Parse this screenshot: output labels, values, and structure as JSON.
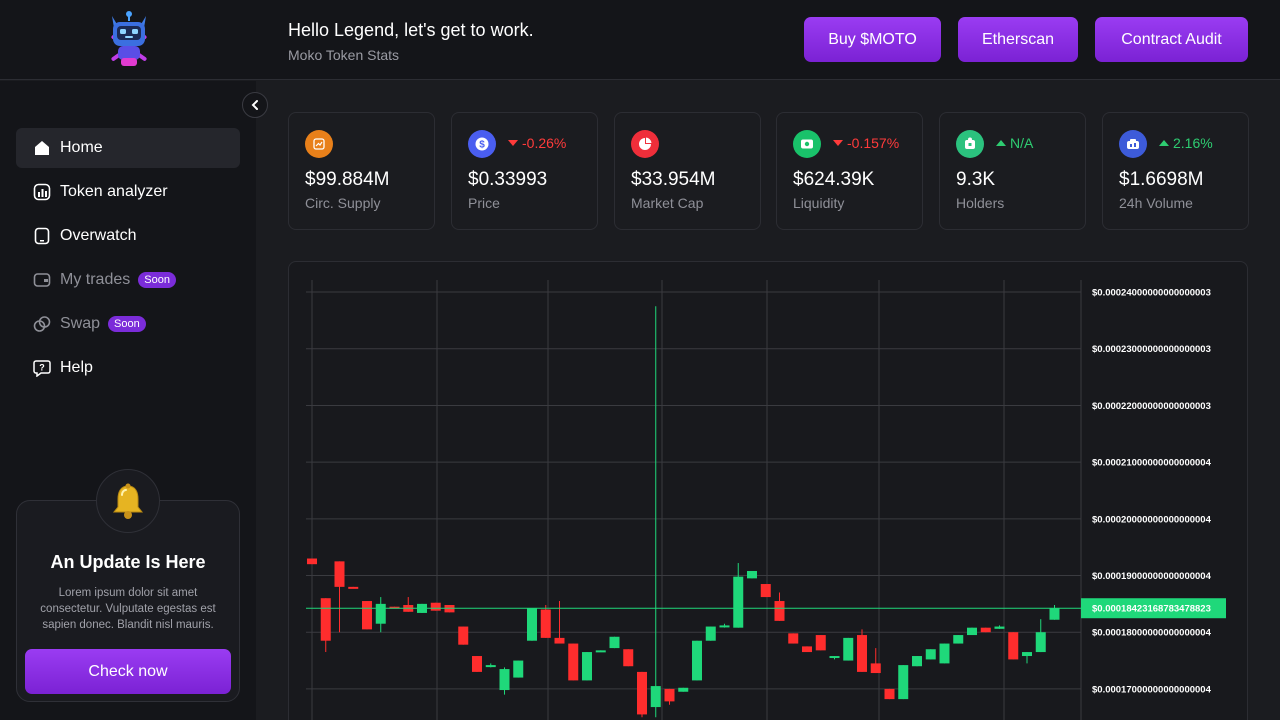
{
  "header": {
    "greeting": "Hello Legend, let's get to work.",
    "subtitle": "Moko Token Stats",
    "buttons": [
      {
        "label": "Buy $MOTO"
      },
      {
        "label": "Etherscan"
      },
      {
        "label": "Contract Audit"
      }
    ]
  },
  "sidebar": {
    "items": [
      {
        "label": "Home",
        "icon": "home-icon",
        "active": true
      },
      {
        "label": "Token analyzer",
        "icon": "chart-icon"
      },
      {
        "label": "Overwatch",
        "icon": "tablet-icon"
      },
      {
        "label": "My trades",
        "icon": "wallet-icon",
        "badge": "Soon"
      },
      {
        "label": "Swap",
        "icon": "swap-icon",
        "badge": "Soon"
      },
      {
        "label": "Help",
        "icon": "help-icon"
      }
    ],
    "update": {
      "title": "An Update Is Here",
      "text": "Lorem ipsum dolor sit amet consectetur. Vulputate egestas est sapien donec. Blandit nisl mauris.",
      "button": "Check now"
    }
  },
  "stats": [
    {
      "value": "$99.884M",
      "label": "Circ. Supply",
      "icon": "supply-icon",
      "color": "#e8801a",
      "change": ""
    },
    {
      "value": "$0.33993",
      "label": "Price",
      "icon": "dollar-icon",
      "color": "#4a5ef0",
      "change": "-0.26%",
      "dir": "down"
    },
    {
      "value": "$33.954M",
      "label": "Market Cap",
      "icon": "pie-icon",
      "color": "#ef2e3a",
      "change": ""
    },
    {
      "value": "$624.39K",
      "label": "Liquidity",
      "icon": "cash-icon",
      "color": "#19c26a",
      "change": "-0.157%",
      "dir": "down"
    },
    {
      "value": "9.3K",
      "label": "Holders",
      "icon": "holders-icon",
      "color": "#2bc27e",
      "change": "N/A",
      "dir": "up"
    },
    {
      "value": "$1.6698M",
      "label": "24h Volume",
      "icon": "volume-icon",
      "color": "#3d5bd9",
      "change": "2.16%",
      "dir": "up"
    }
  ],
  "chart_data": {
    "type": "candlestick",
    "y_tick_labels": [
      "$0.00024000000000000003",
      "$0.00023000000000000003",
      "$0.00022000000000000003",
      "$0.00021000000000000004",
      "$0.00020000000000000004",
      "$0.00019000000000000004",
      "$0.00018000000000000004",
      "$0.00017000000000000004"
    ],
    "y_ticks": [
      0.00024,
      0.00023,
      0.00022,
      0.00021,
      0.0002,
      0.00019,
      0.00018,
      0.00017
    ],
    "ylim": [
      0.0001624,
      0.0002453
    ],
    "grid": true,
    "current_price": 0.00018423168783478824,
    "current_price_label": "$0.00018423168783478823",
    "colors": {
      "up": "#1fd87a",
      "down": "#ff2d2d",
      "grid": "#3a3b40",
      "price_line": "#1fd87a"
    },
    "candles": [
      {
        "o": 0.000193,
        "c": 0.000192,
        "h": 0.000193,
        "l": 0.000192
      },
      {
        "o": 0.000186,
        "c": 0.0001785,
        "h": 0.000186,
        "l": 0.0001765
      },
      {
        "o": 0.0001925,
        "c": 0.000188,
        "h": 0.0001925,
        "l": 0.00018
      },
      {
        "o": 0.000188,
        "c": 0.0001878,
        "h": 0.000188,
        "l": 0.0001878
      },
      {
        "o": 0.0001855,
        "c": 0.0001805,
        "h": 0.0001855,
        "l": 0.0001805
      },
      {
        "o": 0.0001815,
        "c": 0.000185,
        "h": 0.0001862,
        "l": 0.00018
      },
      {
        "o": 0.0001845,
        "c": 0.0001843,
        "h": 0.0001845,
        "l": 0.0001843
      },
      {
        "o": 0.0001848,
        "c": 0.0001836,
        "h": 0.0001862,
        "l": 0.0001836
      },
      {
        "o": 0.0001834,
        "c": 0.000185,
        "h": 0.000185,
        "l": 0.0001834
      },
      {
        "o": 0.0001852,
        "c": 0.0001838,
        "h": 0.0001852,
        "l": 0.0001838
      },
      {
        "o": 0.0001848,
        "c": 0.0001835,
        "h": 0.0001848,
        "l": 0.0001835
      },
      {
        "o": 0.000181,
        "c": 0.0001778,
        "h": 0.000181,
        "l": 0.0001778
      },
      {
        "o": 0.0001758,
        "c": 0.000173,
        "h": 0.0001758,
        "l": 0.000173
      },
      {
        "o": 0.0001742,
        "c": 0.0001742,
        "h": 0.0001745,
        "l": 0.0001738
      },
      {
        "o": 0.0001698,
        "c": 0.0001735,
        "h": 0.0001738,
        "l": 0.000169
      },
      {
        "o": 0.000172,
        "c": 0.000175,
        "h": 0.000175,
        "l": 0.000172
      },
      {
        "o": 0.0001785,
        "c": 0.0001842,
        "h": 0.0001842,
        "l": 0.0001785
      },
      {
        "o": 0.000184,
        "c": 0.000179,
        "h": 0.0001848,
        "l": 0.000179
      },
      {
        "o": 0.000179,
        "c": 0.000178,
        "h": 0.0001855,
        "l": 0.000178
      },
      {
        "o": 0.000178,
        "c": 0.0001715,
        "h": 0.000178,
        "l": 0.0001715
      },
      {
        "o": 0.0001715,
        "c": 0.0001765,
        "h": 0.0001765,
        "l": 0.0001715
      },
      {
        "o": 0.0001765,
        "c": 0.0001768,
        "h": 0.0001768,
        "l": 0.0001765
      },
      {
        "o": 0.0001772,
        "c": 0.0001792,
        "h": 0.0001792,
        "l": 0.0001772
      },
      {
        "o": 0.000177,
        "c": 0.000174,
        "h": 0.000177,
        "l": 0.000174
      },
      {
        "o": 0.000173,
        "c": 0.0001655,
        "h": 0.000173,
        "l": 0.000165
      },
      {
        "o": 0.0001668,
        "c": 0.0001705,
        "h": 0.0002375,
        "l": 0.000165
      },
      {
        "o": 0.00017,
        "c": 0.0001678,
        "h": 0.00017,
        "l": 0.0001672
      },
      {
        "o": 0.0001695,
        "c": 0.0001702,
        "h": 0.0001702,
        "l": 0.0001695
      },
      {
        "o": 0.0001715,
        "c": 0.0001785,
        "h": 0.0001785,
        "l": 0.0001715
      },
      {
        "o": 0.0001785,
        "c": 0.000181,
        "h": 0.000181,
        "l": 0.0001785
      },
      {
        "o": 0.0001812,
        "c": 0.0001812,
        "h": 0.0001815,
        "l": 0.0001808
      },
      {
        "o": 0.0001808,
        "c": 0.0001898,
        "h": 0.0001922,
        "l": 0.0001808
      },
      {
        "o": 0.0001895,
        "c": 0.0001908,
        "h": 0.0001908,
        "l": 0.0001895
      },
      {
        "o": 0.0001885,
        "c": 0.0001862,
        "h": 0.0001885,
        "l": 0.0001862
      },
      {
        "o": 0.0001855,
        "c": 0.000182,
        "h": 0.000187,
        "l": 0.000182
      },
      {
        "o": 0.0001798,
        "c": 0.000178,
        "h": 0.0001798,
        "l": 0.000178
      },
      {
        "o": 0.0001775,
        "c": 0.0001765,
        "h": 0.0001775,
        "l": 0.0001765
      },
      {
        "o": 0.0001795,
        "c": 0.0001768,
        "h": 0.0001795,
        "l": 0.0001768
      },
      {
        "o": 0.0001755,
        "c": 0.0001758,
        "h": 0.0001758,
        "l": 0.0001752
      },
      {
        "o": 0.000175,
        "c": 0.000179,
        "h": 0.000179,
        "l": 0.000175
      },
      {
        "o": 0.0001795,
        "c": 0.000173,
        "h": 0.0001805,
        "l": 0.000173
      },
      {
        "o": 0.0001745,
        "c": 0.0001728,
        "h": 0.0001772,
        "l": 0.0001728
      },
      {
        "o": 0.00017,
        "c": 0.0001682,
        "h": 0.00017,
        "l": 0.0001682
      },
      {
        "o": 0.0001682,
        "c": 0.0001742,
        "h": 0.0001742,
        "l": 0.0001682
      },
      {
        "o": 0.000174,
        "c": 0.0001758,
        "h": 0.0001758,
        "l": 0.000174
      },
      {
        "o": 0.0001752,
        "c": 0.000177,
        "h": 0.000177,
        "l": 0.0001752
      },
      {
        "o": 0.0001745,
        "c": 0.000178,
        "h": 0.000178,
        "l": 0.0001745
      },
      {
        "o": 0.000178,
        "c": 0.0001795,
        "h": 0.0001795,
        "l": 0.000178
      },
      {
        "o": 0.0001795,
        "c": 0.0001808,
        "h": 0.0001808,
        "l": 0.0001795
      },
      {
        "o": 0.0001808,
        "c": 0.00018,
        "h": 0.0001808,
        "l": 0.00018
      },
      {
        "o": 0.0001806,
        "c": 0.000181,
        "h": 0.0001812,
        "l": 0.0001806
      },
      {
        "o": 0.00018,
        "c": 0.0001752,
        "h": 0.00018,
        "l": 0.0001752
      },
      {
        "o": 0.0001758,
        "c": 0.0001765,
        "h": 0.0001765,
        "l": 0.0001745
      },
      {
        "o": 0.0001765,
        "c": 0.00018,
        "h": 0.0001823,
        "l": 0.0001765
      },
      {
        "o": 0.0001822,
        "c": 0.0001842,
        "h": 0.0001848,
        "l": 0.0001822
      }
    ]
  }
}
